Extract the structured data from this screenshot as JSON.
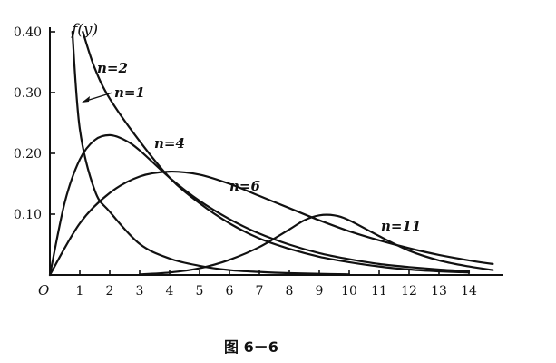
{
  "chart_data": {
    "type": "line",
    "ylabel": "f(y)",
    "origin_label": "O",
    "caption": "图 6－6",
    "xlim": [
      0,
      15
    ],
    "ylim": [
      0,
      0.4
    ],
    "x_ticks": [
      1,
      2,
      3,
      4,
      5,
      6,
      7,
      8,
      9,
      10,
      11,
      12,
      13,
      14
    ],
    "x_tick_labels": [
      "1",
      "2",
      "3",
      "4",
      "5",
      "6",
      "7",
      "8",
      "9",
      "10",
      "11",
      "12",
      "13",
      "14"
    ],
    "y_ticks": [
      0.1,
      0.2,
      0.3,
      0.4
    ],
    "y_tick_labels": [
      "0.10",
      "0.20",
      "0.30",
      "0.40"
    ],
    "series": [
      {
        "name": "n=1",
        "x": [
          0.75,
          1,
          1.5,
          2,
          3,
          4,
          5,
          6,
          7,
          8,
          9,
          10
        ],
        "y": [
          0.4,
          0.24,
          0.139,
          0.104,
          0.051,
          0.027,
          0.015,
          0.008,
          0.005,
          0.003,
          0.002,
          0.001
        ]
      },
      {
        "name": "n=2",
        "x": [
          1.1,
          1.5,
          2,
          3,
          4,
          5,
          6,
          7,
          8,
          9,
          10,
          11,
          12,
          13,
          14
        ],
        "y": [
          0.4,
          0.34,
          0.29,
          0.22,
          0.16,
          0.118,
          0.085,
          0.06,
          0.043,
          0.03,
          0.021,
          0.014,
          0.009,
          0.006,
          0.004
        ]
      },
      {
        "name": "n=4",
        "x": [
          0,
          0.5,
          1,
          1.5,
          2,
          2.5,
          3,
          4,
          5,
          6,
          7,
          8,
          9,
          10,
          11,
          12,
          13,
          14
        ],
        "y": [
          0,
          0.12,
          0.19,
          0.222,
          0.23,
          0.222,
          0.205,
          0.16,
          0.122,
          0.092,
          0.068,
          0.05,
          0.036,
          0.026,
          0.018,
          0.013,
          0.009,
          0.006
        ]
      },
      {
        "name": "n=6",
        "x": [
          0,
          1,
          2,
          3,
          4,
          5,
          6,
          7,
          8,
          9,
          10,
          11,
          12,
          13,
          14,
          14.8
        ],
        "y": [
          0,
          0.085,
          0.135,
          0.162,
          0.17,
          0.165,
          0.15,
          0.13,
          0.11,
          0.09,
          0.072,
          0.057,
          0.044,
          0.033,
          0.024,
          0.018
        ]
      },
      {
        "name": "n=11",
        "x": [
          3,
          4,
          5,
          6,
          7,
          8,
          8.5,
          9,
          9.5,
          10,
          11,
          12,
          13,
          14,
          14.8
        ],
        "y": [
          0.001,
          0.004,
          0.011,
          0.025,
          0.046,
          0.075,
          0.09,
          0.098,
          0.098,
          0.09,
          0.064,
          0.04,
          0.024,
          0.014,
          0.008
        ]
      }
    ],
    "annotations": [
      {
        "text": "n=2",
        "series": "n=2"
      },
      {
        "text": "n=1",
        "series": "n=1"
      },
      {
        "text": "n=4",
        "series": "n=4"
      },
      {
        "text": "n=6",
        "series": "n=6"
      },
      {
        "text": "n=11",
        "series": "n=11"
      }
    ]
  }
}
